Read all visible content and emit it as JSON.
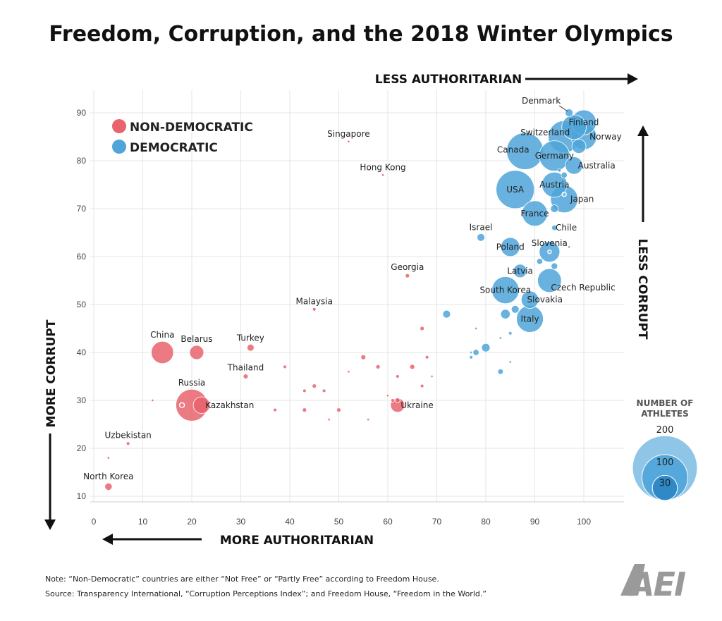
{
  "chart_data": {
    "type": "scatter",
    "title": "Freedom, Corruption, and the 2018 Winter Olympics",
    "x_axis": {
      "range": [
        0,
        108
      ],
      "ticks": [
        0,
        10,
        20,
        30,
        40,
        50,
        60,
        70,
        80,
        90,
        100
      ],
      "label_right": "LESS AUTHORITARIAN",
      "label_left": "MORE AUTHORITARIAN"
    },
    "y_axis": {
      "range": [
        8,
        93
      ],
      "ticks": [
        10,
        20,
        30,
        40,
        50,
        60,
        70,
        80,
        90
      ],
      "label_up": "LESS CORRUPT",
      "label_down": "MORE CORRUPT"
    },
    "grid": true,
    "legend": {
      "placement": "top-left",
      "items": [
        {
          "name": "NON-DEMOCRATIC",
          "color": "#e8636c"
        },
        {
          "name": "DEMOCRATIC",
          "color": "#4fa4d9"
        }
      ]
    },
    "size_legend": {
      "title_line1": "NUMBER OF",
      "title_line2": "ATHLETES",
      "values": [
        200,
        100,
        30
      ],
      "colors": [
        "#8fc6e7",
        "#55a8db",
        "#2f89c6"
      ]
    },
    "series": [
      {
        "name": "NON-DEMOCRATIC",
        "color": "#e8636c",
        "points": [
          {
            "x": 14,
            "y": 40,
            "athletes": 82,
            "label": "China",
            "label_pos": "above"
          },
          {
            "x": 21,
            "y": 40,
            "athletes": 33,
            "label": "Belarus",
            "label_pos": "above"
          },
          {
            "x": 20,
            "y": 29,
            "athletes": 168,
            "label": "Russia",
            "label_pos": "above"
          },
          {
            "x": 22,
            "y": 29,
            "athletes": 46,
            "label": "Kazakhstan",
            "label_pos": "right"
          },
          {
            "x": 18,
            "y": 29,
            "athletes": 4
          },
          {
            "x": 32,
            "y": 41,
            "athletes": 8,
            "label": "Turkey",
            "label_pos": "above"
          },
          {
            "x": 31,
            "y": 35,
            "athletes": 4,
            "label": "Thailand",
            "label_pos": "above"
          },
          {
            "x": 45,
            "y": 49,
            "athletes": 2,
            "label": "Malaysia",
            "label_pos": "above"
          },
          {
            "x": 52,
            "y": 84,
            "athletes": 1,
            "label": "Singapore",
            "label_pos": "above"
          },
          {
            "x": 59,
            "y": 77,
            "athletes": 1,
            "label": "Hong Kong",
            "label_pos": "above"
          },
          {
            "x": 64,
            "y": 56,
            "athletes": 3,
            "label": "Georgia",
            "label_pos": "above"
          },
          {
            "x": 62,
            "y": 29,
            "athletes": 33,
            "label": "Ukraine",
            "label_pos": "right"
          },
          {
            "x": 62,
            "y": 30,
            "athletes": 4
          },
          {
            "x": 61,
            "y": 30,
            "athletes": 2
          },
          {
            "x": 7,
            "y": 21,
            "athletes": 2,
            "label": "Uzbekistan",
            "label_pos": "above"
          },
          {
            "x": 3,
            "y": 18,
            "athletes": 1
          },
          {
            "x": 3,
            "y": 12,
            "athletes": 9,
            "label": "North Korea",
            "label_pos": "above"
          },
          {
            "x": 12,
            "y": 30,
            "athletes": 1
          },
          {
            "x": 39,
            "y": 37,
            "athletes": 2
          },
          {
            "x": 45,
            "y": 33,
            "athletes": 3
          },
          {
            "x": 43,
            "y": 32,
            "athletes": 2
          },
          {
            "x": 47,
            "y": 32,
            "athletes": 2
          },
          {
            "x": 37,
            "y": 28,
            "athletes": 2
          },
          {
            "x": 43,
            "y": 28,
            "athletes": 3
          },
          {
            "x": 50,
            "y": 28,
            "athletes": 3
          },
          {
            "x": 48,
            "y": 26,
            "athletes": 1
          },
          {
            "x": 56,
            "y": 26,
            "athletes": 1
          },
          {
            "x": 55,
            "y": 39,
            "athletes": 4
          },
          {
            "x": 58,
            "y": 37,
            "athletes": 3
          },
          {
            "x": 52,
            "y": 36,
            "athletes": 1
          },
          {
            "x": 65,
            "y": 37,
            "athletes": 4
          },
          {
            "x": 68,
            "y": 39,
            "athletes": 2
          },
          {
            "x": 67,
            "y": 45,
            "athletes": 3
          },
          {
            "x": 62,
            "y": 35,
            "athletes": 2
          },
          {
            "x": 67,
            "y": 33,
            "athletes": 2
          },
          {
            "x": 60,
            "y": 31,
            "athletes": 1
          }
        ]
      },
      {
        "name": "DEMOCRATIC",
        "color": "#4fa4d9",
        "points": [
          {
            "x": 86,
            "y": 74,
            "athletes": 242,
            "label": "USA",
            "label_pos": "center"
          },
          {
            "x": 88,
            "y": 82,
            "athletes": 225,
            "label": "Canada",
            "label_pos": "left-center"
          },
          {
            "x": 96,
            "y": 85,
            "athletes": 169,
            "label": "Switzerland",
            "label_pos": "left-center"
          },
          {
            "x": 98,
            "y": 87,
            "athletes": 100
          },
          {
            "x": 100,
            "y": 88,
            "athletes": 103,
            "label": "Finland",
            "label_pos": "center"
          },
          {
            "x": 100,
            "y": 85,
            "athletes": 109,
            "label": "Norway",
            "label_pos": "right"
          },
          {
            "x": 99,
            "y": 83,
            "athletes": 33
          },
          {
            "x": 94,
            "y": 81,
            "athletes": 154,
            "label": "Germany",
            "label_pos": "center"
          },
          {
            "x": 98,
            "y": 79,
            "athletes": 50,
            "label": "Australia",
            "label_pos": "right"
          },
          {
            "x": 95,
            "y": 78,
            "athletes": 2
          },
          {
            "x": 96,
            "y": 77,
            "athletes": 6
          },
          {
            "x": 97,
            "y": 90,
            "athletes": 10,
            "label": "Denmark",
            "label_pos": "pointer"
          },
          {
            "x": 94,
            "y": 75,
            "athletes": 105,
            "label": "Austria",
            "label_pos": "center"
          },
          {
            "x": 96,
            "y": 72,
            "athletes": 124,
            "label": "Japan",
            "label_pos": "right"
          },
          {
            "x": 96,
            "y": 73,
            "athletes": 3
          },
          {
            "x": 94,
            "y": 70,
            "athletes": 10
          },
          {
            "x": 90,
            "y": 69,
            "athletes": 107,
            "label": "France",
            "label_pos": "center"
          },
          {
            "x": 94,
            "y": 66,
            "athletes": 5,
            "label": "Chile",
            "label_pos": "right"
          },
          {
            "x": 79,
            "y": 64,
            "athletes": 10,
            "label": "Israel",
            "label_pos": "above"
          },
          {
            "x": 85,
            "y": 62,
            "athletes": 60,
            "label": "Poland",
            "label_pos": "center"
          },
          {
            "x": 93,
            "y": 61,
            "athletes": 70,
            "label": "Slovenia",
            "label_pos": "above-center"
          },
          {
            "x": 93,
            "y": 61,
            "athletes": 2
          },
          {
            "x": 97,
            "y": 62,
            "athletes": 1
          },
          {
            "x": 91,
            "y": 59,
            "athletes": 6
          },
          {
            "x": 94,
            "y": 58,
            "athletes": 7
          },
          {
            "x": 87,
            "y": 57,
            "athletes": 30,
            "label": "Latvia",
            "label_pos": "center"
          },
          {
            "x": 93,
            "y": 55,
            "athletes": 94,
            "label": "Czech Republic",
            "label_pos": "right"
          },
          {
            "x": 84,
            "y": 53,
            "athletes": 122,
            "label": "South Korea",
            "label_pos": "center"
          },
          {
            "x": 89,
            "y": 51,
            "athletes": 50,
            "label": "Slovakia",
            "label_pos": "right"
          },
          {
            "x": 89,
            "y": 47,
            "athletes": 120,
            "label": "Italy",
            "label_pos": "center"
          },
          {
            "x": 86,
            "y": 49,
            "athletes": 10
          },
          {
            "x": 84,
            "y": 48,
            "athletes": 15
          },
          {
            "x": 72,
            "y": 48,
            "athletes": 10
          },
          {
            "x": 85,
            "y": 44,
            "athletes": 2
          },
          {
            "x": 78,
            "y": 45,
            "athletes": 1
          },
          {
            "x": 83,
            "y": 43,
            "athletes": 1
          },
          {
            "x": 80,
            "y": 41,
            "athletes": 12
          },
          {
            "x": 78,
            "y": 40,
            "athletes": 6
          },
          {
            "x": 77,
            "y": 40,
            "athletes": 1
          },
          {
            "x": 77,
            "y": 39,
            "athletes": 2
          },
          {
            "x": 85,
            "y": 38,
            "athletes": 1
          },
          {
            "x": 83,
            "y": 36,
            "athletes": 5
          },
          {
            "x": 69,
            "y": 35,
            "athletes": 1
          }
        ]
      }
    ]
  },
  "notes": {
    "line1": "Note: “Non-Democratic” countries are either “Not Free” or “Partly Free” according to Freedom House.",
    "line2": "Source: Transparency International, “Corruption Perceptions Index”; and Freedom House, “Freedom in the World.”"
  },
  "logo": {
    "text": "AEI"
  }
}
